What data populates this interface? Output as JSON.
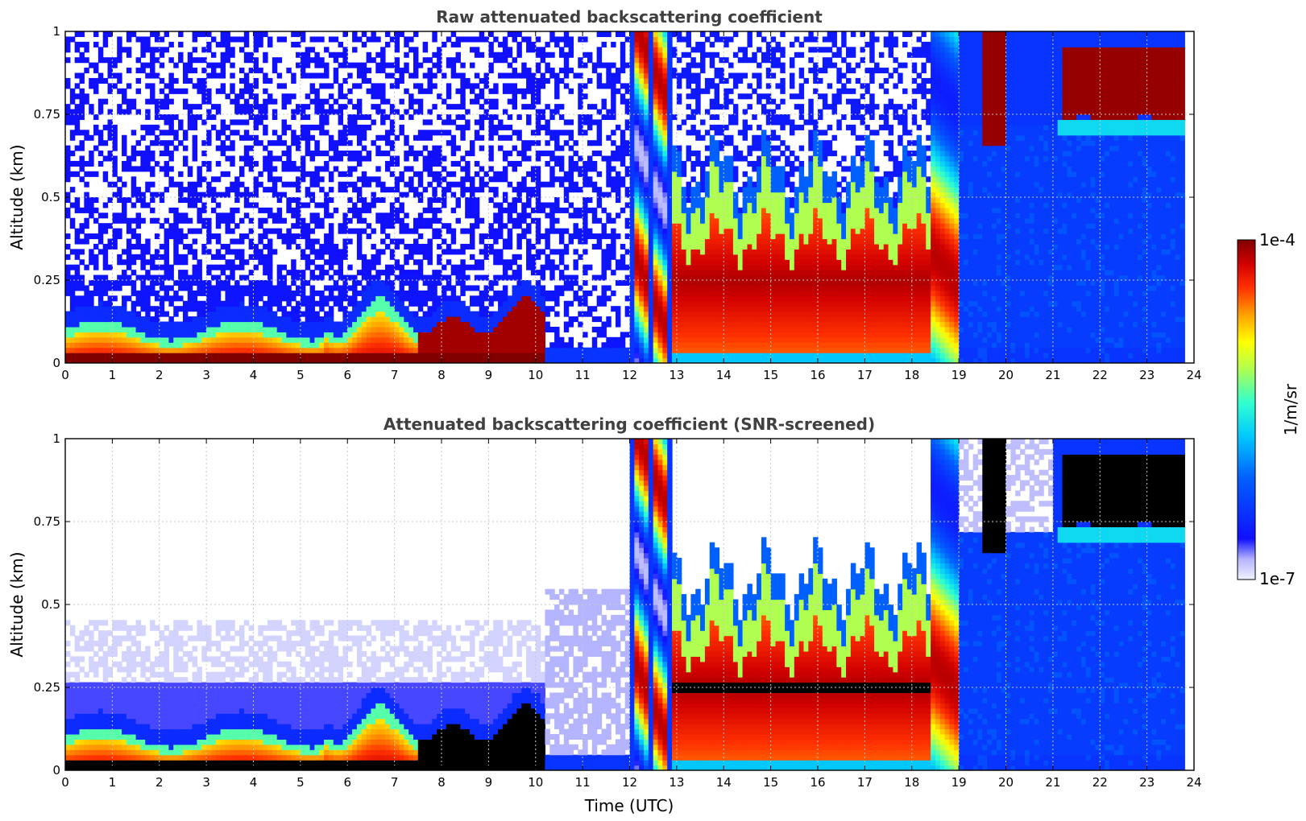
{
  "chart_data": [
    {
      "type": "heatmap",
      "title": "Raw attenuated backscattering coefficient",
      "ylabel": "Altitude (km)",
      "xlabel": "",
      "xlim": [
        0,
        24
      ],
      "ylim": [
        0,
        1
      ],
      "x_ticks": [
        "0",
        "1",
        "2",
        "3",
        "4",
        "5",
        "6",
        "7",
        "8",
        "9",
        "10",
        "11",
        "12",
        "13",
        "14",
        "15",
        "16",
        "17",
        "18",
        "19",
        "20",
        "21",
        "22",
        "23",
        "24"
      ],
      "y_ticks": [
        "0",
        "0.25",
        "0.5",
        "0.75",
        "1"
      ],
      "grid": true,
      "features": [
        {
          "t_start": 0,
          "t_end": 10.2,
          "surface_layer_top_km": 0.1,
          "aerosol_top_km": 0.25
        },
        {
          "t_start": 12.1,
          "t_end": 12.9,
          "cloud_tops_km": 1.0
        },
        {
          "t_start": 13.0,
          "t_end": 18.4,
          "cloud_base_km": 0.03,
          "cloud_top_km": 0.6
        },
        {
          "t_start": 19.5,
          "t_end": 20.0,
          "cloud_base_km": 0.65,
          "cloud_top_km": 1.0
        },
        {
          "t_start": 21.2,
          "t_end": 23.85,
          "cloud_base_km": 0.72,
          "cloud_top_km": 0.95
        }
      ]
    },
    {
      "type": "heatmap",
      "title": "Attenuated backscattering coefficient (SNR-screened)",
      "ylabel": "Altitude (km)",
      "xlabel": "Time (UTC)",
      "xlim": [
        0,
        24
      ],
      "ylim": [
        0,
        1
      ],
      "x_ticks": [
        "0",
        "1",
        "2",
        "3",
        "4",
        "5",
        "6",
        "7",
        "8",
        "9",
        "10",
        "11",
        "12",
        "13",
        "14",
        "15",
        "16",
        "17",
        "18",
        "19",
        "20",
        "21",
        "22",
        "23",
        "24"
      ],
      "y_ticks": [
        "0",
        "0.25",
        "0.5",
        "0.75",
        "1"
      ],
      "grid": true
    }
  ],
  "colorbar": {
    "label": "1/m/sr",
    "max_label": "1e-4",
    "min_label": "1e-7",
    "scale": "log",
    "range": [
      1e-07,
      0.0001
    ],
    "colormap": "jet"
  },
  "colors": {
    "saturated_screened": "#000000",
    "background": "#ffffff"
  }
}
